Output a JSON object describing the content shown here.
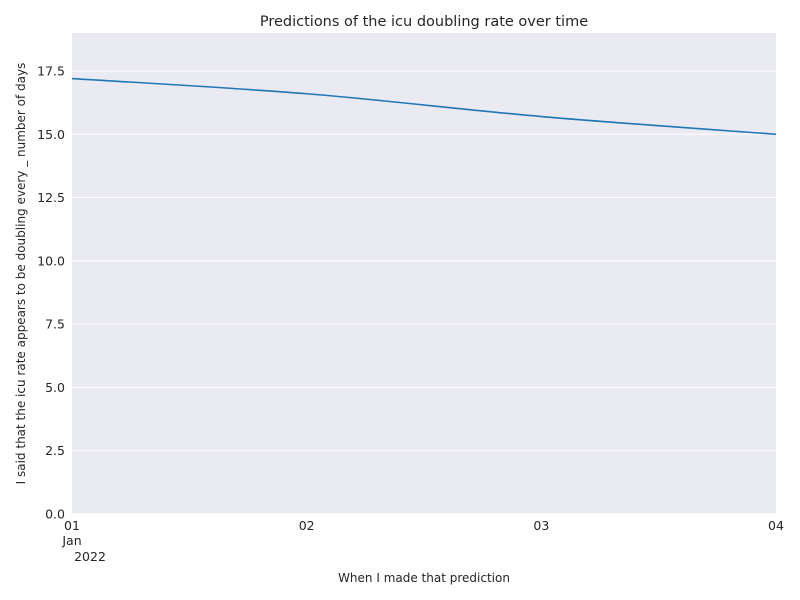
{
  "chart_data": {
    "type": "line",
    "title": "Predictions of the icu doubling rate over time",
    "xlabel": "When I made that prediction",
    "ylabel": "I said that the icu rate appears to be doubling every _ number of days",
    "x": [
      "2022-01-01",
      "2022-01-02",
      "2022-01-03",
      "2022-01-04"
    ],
    "x_tick_labels": [
      {
        "day": "01",
        "month": "Jan",
        "year": "2022"
      },
      {
        "day": "02",
        "month": "",
        "year": ""
      },
      {
        "day": "03",
        "month": "",
        "year": ""
      },
      {
        "day": "04",
        "month": "",
        "year": ""
      }
    ],
    "series": [
      {
        "values": [
          17.2,
          16.6,
          15.7,
          15.0
        ],
        "color": "#1f77b4"
      }
    ],
    "ylim": [
      0,
      19
    ],
    "y_ticks": [
      "0.0",
      "2.5",
      "5.0",
      "7.5",
      "10.0",
      "12.5",
      "15.0",
      "17.5"
    ],
    "grid": "y",
    "background_color": "#eaeaf2",
    "legend": "none"
  }
}
